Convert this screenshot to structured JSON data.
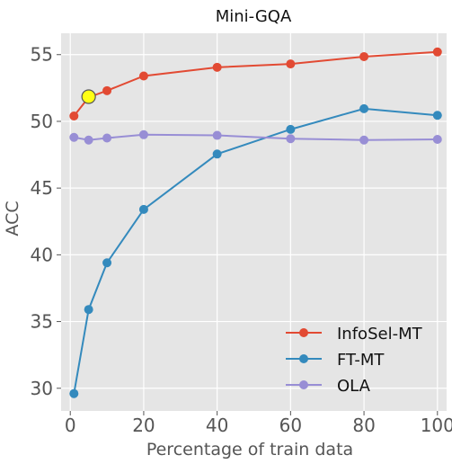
{
  "chart_data": {
    "type": "line",
    "title": "Mini-GQA",
    "xlabel": "Percentage of train data",
    "ylabel": "ACC",
    "xlim": [
      -2.5,
      102.5
    ],
    "ylim": [
      28.3,
      56.6
    ],
    "xticks": [
      0,
      20,
      40,
      60,
      80,
      100
    ],
    "yticks": [
      30,
      35,
      40,
      45,
      50,
      55
    ],
    "grid": true,
    "legend_position": "lower-right",
    "x": [
      1,
      5,
      10,
      20,
      40,
      60,
      80,
      100
    ],
    "series": [
      {
        "name": "InfoSel-MT",
        "color": "#E24A33",
        "values": [
          50.4,
          51.8,
          52.3,
          53.4,
          54.05,
          54.3,
          54.85,
          55.2
        ]
      },
      {
        "name": "FT-MT",
        "color": "#348ABD",
        "values": [
          29.6,
          35.9,
          39.4,
          43.4,
          47.55,
          49.4,
          50.95,
          50.45
        ]
      },
      {
        "name": "OLA",
        "color": "#988ED5",
        "values": [
          48.8,
          48.6,
          48.75,
          49.0,
          48.95,
          48.7,
          48.6,
          48.65
        ]
      }
    ],
    "highlight": {
      "x": 5,
      "y": 51.85,
      "color": "#FFFF14"
    }
  }
}
